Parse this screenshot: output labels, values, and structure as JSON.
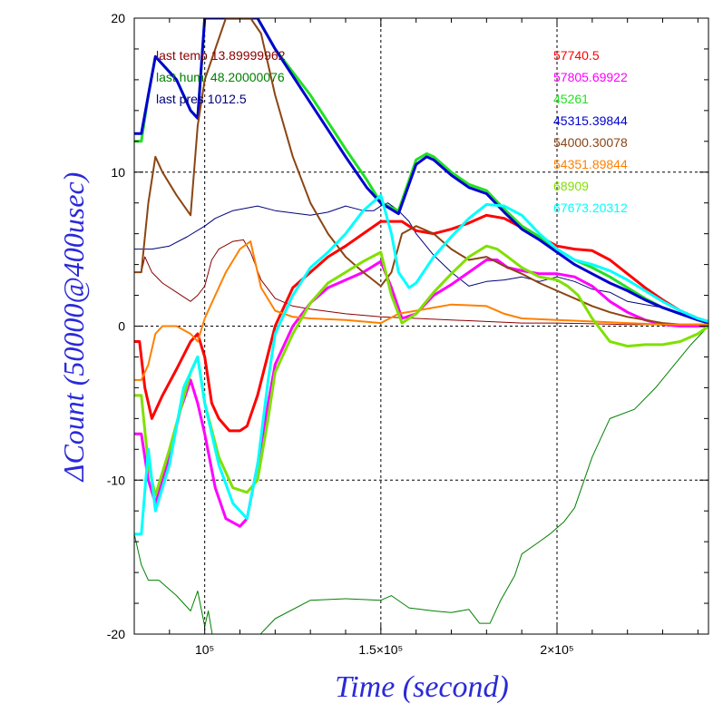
{
  "chart_data": {
    "type": "line",
    "xlabel": "Time (second)",
    "ylabel": "ΔCount (50000@400usec)",
    "xlim": [
      80000,
      243000
    ],
    "ylim": [
      -20,
      20
    ],
    "x_ticks": [
      {
        "value": 100000,
        "label": "10⁵"
      },
      {
        "value": 150000,
        "label": "1.5×10⁵"
      },
      {
        "value": 200000,
        "label": "2×10⁵"
      }
    ],
    "y_ticks": [
      -20,
      -10,
      0,
      10,
      20
    ],
    "grid": true,
    "legend_left": [
      {
        "text": "last temp 13.89999962",
        "color": "#8b0000"
      },
      {
        "text": "last humi 48.20000076",
        "color": "#008000"
      },
      {
        "text": "last pres 1012.5",
        "color": "#00007a"
      }
    ],
    "legend_right": [
      {
        "text": "57740.5",
        "color": "#ff0000"
      },
      {
        "text": "57805.69922",
        "color": "#ff00ff"
      },
      {
        "text": "45261",
        "color": "#22e022"
      },
      {
        "text": "45315.39844",
        "color": "#0000d0"
      },
      {
        "text": "54000.30078",
        "color": "#8b4513"
      },
      {
        "text": "54351.89844",
        "color": "#ff8000"
      },
      {
        "text": "68909",
        "color": "#80e000"
      },
      {
        "text": "67673.20312",
        "color": "#00ffff"
      }
    ],
    "series": [
      {
        "color": "#008000",
        "width": 1,
        "x": [
          80000,
          82000,
          84000,
          87000,
          92000,
          96000,
          98000,
          100000,
          101000,
          102500,
          104000,
          110000,
          115000,
          120000,
          130000,
          140000,
          150000,
          153000,
          158000,
          165000,
          170000,
          175000,
          178000,
          181000,
          184000,
          188000,
          190000,
          195000,
          198000,
          202000,
          205000,
          210000,
          215000,
          222000,
          228000,
          233000,
          238000,
          243000
        ],
        "y": [
          -13.5,
          -15.5,
          -16.5,
          -16.5,
          -17.5,
          -18.5,
          -17.2,
          -19.5,
          -18.5,
          -20.5,
          -20.5,
          -20.5,
          -20.2,
          -19,
          -17.8,
          -17.7,
          -17.8,
          -17.5,
          -18.3,
          -18.5,
          -18.6,
          -18.4,
          -19.3,
          -19.3,
          -17.8,
          -16.2,
          -14.8,
          -14,
          -13.5,
          -12.7,
          -11.8,
          -8.5,
          -6,
          -5.4,
          -4,
          -2.6,
          -1.2,
          0
        ]
      },
      {
        "color": "#8b0000",
        "width": 1,
        "x": [
          80000,
          82000,
          83000,
          85000,
          88000,
          92000,
          96000,
          98000,
          100000,
          102000,
          104000,
          108000,
          111000,
          113000,
          116000,
          120000,
          125000,
          130000,
          140000,
          150000,
          160000,
          170000,
          180000,
          190000,
          200000,
          220000,
          243000
        ],
        "y": [
          3.5,
          3.5,
          4.5,
          3.5,
          2.8,
          2.2,
          1.6,
          2.0,
          2.6,
          4.3,
          5.0,
          5.5,
          5.6,
          4.8,
          3.0,
          1.8,
          1.3,
          1.1,
          0.8,
          0.6,
          0.5,
          0.4,
          0.3,
          0.2,
          0.2,
          0.1,
          0.1
        ]
      },
      {
        "color": "#00007a",
        "width": 1,
        "x": [
          80000,
          85000,
          90000,
          95000,
          100000,
          103000,
          108000,
          115000,
          120000,
          130000,
          135000,
          140000,
          145000,
          148000,
          150000,
          152000,
          155000,
          158000,
          160000,
          165000,
          170000,
          175000,
          180000,
          185000,
          190000,
          195000,
          200000,
          205000,
          210000,
          215000,
          220000,
          225000,
          230000,
          235000,
          240000,
          243000
        ],
        "y": [
          5,
          5,
          5.2,
          5.8,
          6.5,
          7.0,
          7.5,
          7.8,
          7.5,
          7.2,
          7.4,
          7.8,
          7.5,
          7.5,
          7.8,
          8.0,
          7.5,
          6.8,
          6.0,
          4.6,
          3.5,
          2.6,
          2.9,
          3.0,
          3.2,
          2.9,
          3.2,
          2.9,
          2.4,
          2.2,
          1.6,
          1.4,
          1.2,
          0.8,
          0.5,
          0.3
        ]
      },
      {
        "color": "#ff0000",
        "width": 3,
        "x": [
          80000,
          81500,
          83000,
          85000,
          88000,
          92000,
          96000,
          98000,
          100000,
          102000,
          104000,
          107000,
          110000,
          112000,
          115000,
          120000,
          125000,
          130000,
          135000,
          140000,
          145000,
          150000,
          153000,
          156000,
          160000,
          165000,
          170000,
          175000,
          180000,
          185000,
          190000,
          195000,
          200000,
          205000,
          210000,
          215000,
          220000,
          225000,
          230000,
          235000,
          240000,
          243000
        ],
        "y": [
          -1,
          -1,
          -4,
          -6,
          -4.5,
          -2.8,
          -1,
          -0.5,
          -2,
          -5,
          -6,
          -6.8,
          -6.8,
          -6.5,
          -4.5,
          0,
          2.5,
          3.5,
          4.5,
          5.2,
          6,
          6.8,
          6.8,
          6.8,
          6.2,
          6.0,
          6.3,
          6.7,
          7.2,
          7.0,
          6.4,
          5.8,
          5.2,
          5.0,
          4.9,
          4.3,
          3.4,
          2.5,
          1.7,
          1.0,
          0.5,
          0.3
        ]
      },
      {
        "color": "#ff00ff",
        "width": 3,
        "x": [
          80000,
          82000,
          84000,
          86000,
          90000,
          93000,
          96000,
          98000,
          100000,
          103000,
          106000,
          110000,
          112000,
          115000,
          118000,
          120000,
          125000,
          130000,
          135000,
          140000,
          145000,
          150000,
          153000,
          156000,
          160000,
          165000,
          170000,
          175000,
          180000,
          183000,
          186000,
          190000,
          195000,
          200000,
          205000,
          210000,
          215000,
          220000,
          225000,
          230000,
          235000,
          240000,
          243000
        ],
        "y": [
          -7,
          -7,
          -10,
          -11.5,
          -8.5,
          -5.5,
          -3.5,
          -5,
          -7,
          -10.5,
          -12.5,
          -13,
          -12.5,
          -9,
          -5,
          -2.5,
          0,
          1.5,
          2.5,
          3,
          3.5,
          4.2,
          2.5,
          0.5,
          0.8,
          2.0,
          2.7,
          3.5,
          4.3,
          4.3,
          3.8,
          3.6,
          3.4,
          3.4,
          3.2,
          2.6,
          1.6,
          0.9,
          0.4,
          0.1,
          0,
          0,
          0
        ]
      },
      {
        "color": "#22e022",
        "width": 3,
        "x": [
          80000,
          82000,
          84000,
          86000,
          88000,
          92000,
          96000,
          98000,
          100000,
          104000,
          110000,
          115000,
          120000,
          130000,
          140000,
          146000,
          150000,
          155000,
          160000,
          163000,
          165000,
          170000,
          175000,
          180000,
          185000,
          190000,
          195000,
          200000,
          205000,
          210000,
          215000,
          220000,
          225000,
          230000,
          235000,
          240000,
          243000
        ],
        "y": [
          12,
          12,
          15,
          17.5,
          17,
          16,
          14,
          13.5,
          20,
          20,
          20,
          20,
          18,
          15,
          11.5,
          9.5,
          8,
          7.5,
          10.8,
          11.2,
          11,
          10,
          9.2,
          8.8,
          7.6,
          6.5,
          5.8,
          5.0,
          4.3,
          3.8,
          3.2,
          2.5,
          1.8,
          1.2,
          0.8,
          0.4,
          0.2
        ]
      },
      {
        "color": "#0000d0",
        "width": 3,
        "x": [
          80000,
          82000,
          84000,
          86000,
          88000,
          92000,
          96000,
          98000,
          100000,
          104000,
          110000,
          115000,
          120000,
          130000,
          140000,
          146000,
          150000,
          155000,
          160000,
          163000,
          165000,
          170000,
          175000,
          180000,
          185000,
          190000,
          195000,
          200000,
          205000,
          210000,
          215000,
          220000,
          225000,
          230000,
          235000,
          240000,
          243000
        ],
        "y": [
          12.5,
          12.5,
          15,
          17.5,
          17,
          16,
          14,
          13.5,
          20,
          20,
          20,
          20,
          18,
          14.5,
          11,
          9,
          8,
          7.3,
          10.5,
          11,
          10.8,
          9.8,
          9,
          8.6,
          7.4,
          6.3,
          5.6,
          4.8,
          4.0,
          3.4,
          2.8,
          2.3,
          1.7,
          1.2,
          0.8,
          0.4,
          0.2
        ]
      },
      {
        "color": "#8b4513",
        "width": 2,
        "x": [
          80000,
          82000,
          84000,
          86000,
          88000,
          92000,
          96000,
          98000,
          100000,
          103000,
          106000,
          110000,
          113000,
          116000,
          120000,
          125000,
          130000,
          135000,
          140000,
          145000,
          150000,
          153000,
          156000,
          160000,
          165000,
          170000,
          175000,
          180000,
          185000,
          190000,
          195000,
          200000,
          205000,
          210000,
          215000,
          220000,
          225000,
          230000,
          235000,
          240000,
          243000
        ],
        "y": [
          3.5,
          3.5,
          8,
          11,
          10,
          8.5,
          7.2,
          13,
          16,
          18,
          20,
          20,
          20,
          19,
          15,
          11,
          8,
          6,
          4.5,
          3.5,
          2.6,
          3.5,
          6.0,
          6.5,
          6.0,
          5.0,
          4.3,
          4.5,
          3.9,
          3.4,
          2.8,
          2.3,
          1.8,
          1.3,
          0.9,
          0.6,
          0.4,
          0.2,
          0.1,
          0.1,
          0.1
        ]
      },
      {
        "color": "#ff8000",
        "width": 2,
        "x": [
          80000,
          82000,
          84000,
          86000,
          88000,
          92000,
          96000,
          98000,
          100000,
          103000,
          106000,
          110000,
          113000,
          114000,
          116000,
          120000,
          125000,
          130000,
          140000,
          150000,
          155000,
          160000,
          165000,
          170000,
          180000,
          185000,
          190000,
          200000,
          210000,
          220000,
          230000,
          243000
        ],
        "y": [
          -3.5,
          -3.5,
          -2.5,
          -0.5,
          0,
          0,
          -0.5,
          -1.0,
          0.5,
          2.0,
          3.5,
          5.0,
          5.5,
          4.5,
          2.5,
          1.0,
          0.6,
          0.5,
          0.4,
          0.2,
          0.8,
          1.0,
          1.2,
          1.4,
          1.3,
          0.8,
          0.5,
          0.4,
          0.3,
          0.2,
          0.1,
          0.1
        ]
      },
      {
        "color": "#80e000",
        "width": 3,
        "x": [
          80000,
          82000,
          84000,
          86000,
          90000,
          93000,
          96000,
          98000,
          100000,
          104000,
          108000,
          112000,
          115000,
          118000,
          120000,
          125000,
          130000,
          135000,
          140000,
          145000,
          150000,
          153000,
          156000,
          160000,
          165000,
          170000,
          175000,
          180000,
          183000,
          186000,
          190000,
          195000,
          200000,
          203000,
          206000,
          210000,
          215000,
          220000,
          225000,
          230000,
          235000,
          240000,
          243000
        ],
        "y": [
          -4.5,
          -4.5,
          -9,
          -11,
          -8,
          -5.5,
          -3,
          -2,
          -5,
          -8.5,
          -10.5,
          -10.8,
          -10,
          -6,
          -3,
          -0.5,
          1.5,
          2.8,
          3.5,
          4.2,
          4.8,
          2.0,
          0.2,
          0.8,
          2.2,
          3.4,
          4.5,
          5.2,
          5.0,
          4.5,
          3.8,
          3.2,
          3.0,
          2.6,
          2.0,
          0.5,
          -1.0,
          -1.3,
          -1.2,
          -1.2,
          -1.0,
          -0.5,
          0
        ]
      },
      {
        "color": "#00ffff",
        "width": 3,
        "x": [
          80000,
          82000,
          84000,
          86000,
          90000,
          94000,
          98000,
          100000,
          104000,
          108000,
          112000,
          115000,
          118000,
          120000,
          125000,
          130000,
          135000,
          140000,
          145000,
          150000,
          153000,
          155000,
          158000,
          160000,
          165000,
          170000,
          175000,
          180000,
          185000,
          190000,
          195000,
          200000,
          205000,
          210000,
          215000,
          220000,
          225000,
          230000,
          235000,
          240000,
          243000
        ],
        "y": [
          -13.5,
          -13.5,
          -8,
          -12,
          -9,
          -4,
          -2,
          -5,
          -9,
          -11.5,
          -12.5,
          -9,
          -3.5,
          -0.5,
          2,
          3.8,
          4.8,
          6,
          7.5,
          8.5,
          6.0,
          3.5,
          2.5,
          2.8,
          4.5,
          5.8,
          7.0,
          7.9,
          7.8,
          7.2,
          6.0,
          5.0,
          4.3,
          4.0,
          3.6,
          3.0,
          2.3,
          1.6,
          1.0,
          0.5,
          0.3
        ]
      }
    ]
  }
}
